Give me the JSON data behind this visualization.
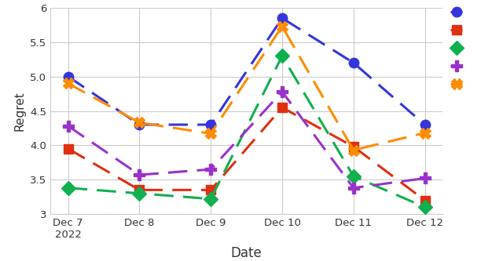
{
  "dates": [
    "Dec 7\n2022",
    "Dec 8",
    "Dec 9",
    "Dec 10",
    "Dec 11",
    "Dec 12"
  ],
  "series": [
    {
      "name": "blue",
      "color": "#3535dd",
      "marker": "o",
      "markersize": 9,
      "values": [
        5.0,
        4.3,
        4.3,
        5.85,
        5.2,
        4.3
      ]
    },
    {
      "name": "red",
      "color": "#e03010",
      "marker": "s",
      "markersize": 9,
      "values": [
        3.95,
        3.35,
        3.35,
        4.55,
        3.98,
        3.2
      ]
    },
    {
      "name": "green",
      "color": "#10b050",
      "marker": "D",
      "markersize": 9,
      "values": [
        3.38,
        3.3,
        3.22,
        5.3,
        3.55,
        3.1
      ]
    },
    {
      "name": "purple",
      "color": "#9932CC",
      "marker": "P",
      "markersize": 10,
      "values": [
        4.28,
        3.57,
        3.65,
        4.78,
        3.38,
        3.52
      ]
    },
    {
      "name": "orange",
      "color": "#FF8C00",
      "marker": "X",
      "markersize": 10,
      "values": [
        4.9,
        4.33,
        4.17,
        5.73,
        3.93,
        4.18
      ]
    }
  ],
  "ylabel": "Regret",
  "xlabel": "Date",
  "ylim": [
    3.0,
    6.0
  ],
  "yticks": [
    3.0,
    3.5,
    4.0,
    4.5,
    5.0,
    5.5,
    6.0
  ],
  "background_color": "#ffffff",
  "grid_color": "#cccccc",
  "linewidth": 2.2,
  "dash_on": 8,
  "dash_off": 4
}
